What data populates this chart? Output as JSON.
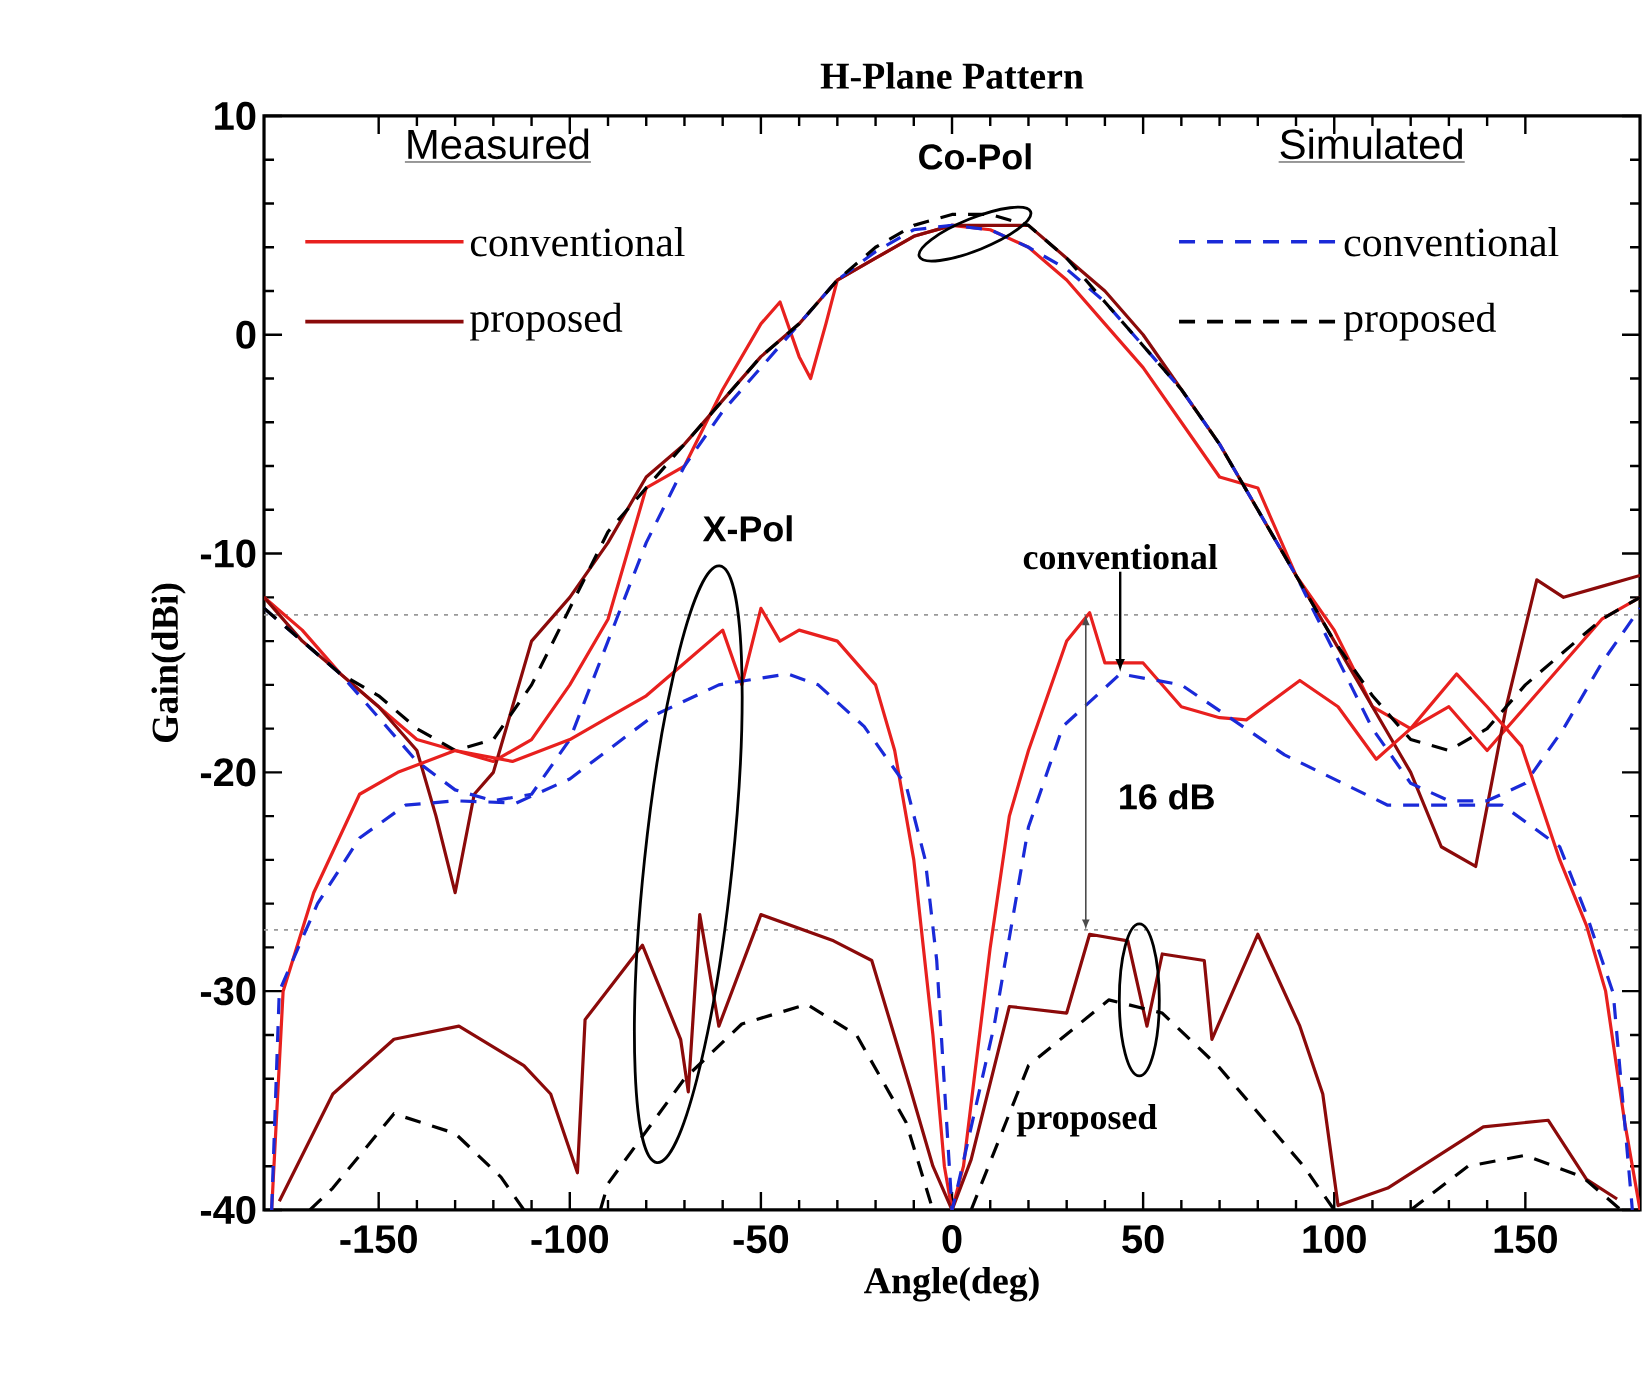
{
  "chart_data": {
    "type": "line",
    "title": "H-Plane Pattern",
    "xlabel": "Angle(deg)",
    "ylabel": "Gain(dBi)",
    "xlim": [
      -180,
      180
    ],
    "ylim": [
      -40,
      10
    ],
    "xticks": [
      -150,
      -100,
      -50,
      0,
      50,
      100,
      150
    ],
    "yticks": [
      -40,
      -30,
      -20,
      -10,
      0,
      10
    ],
    "grid": false,
    "legend": "top",
    "marker": "none",
    "series": [
      {
        "name": "conventional",
        "color": "#e8201e",
        "line_style": "solid",
        "x": [
          -180,
          -170,
          -160,
          -150,
          -140,
          -130,
          -120,
          -110,
          -100,
          -90,
          -80,
          -70,
          -60,
          -50,
          -45,
          -40,
          -37,
          -33,
          -30,
          -20,
          -10,
          0,
          10,
          20,
          30,
          40,
          50,
          60,
          70,
          80,
          90,
          100,
          110,
          120,
          130,
          140,
          150,
          160,
          170,
          180
        ],
        "values": [
          -12,
          -13.5,
          -15.5,
          -17,
          -18.5,
          -19,
          -19.5,
          -18.5,
          -16,
          -13,
          -7,
          -6,
          -2.5,
          0.5,
          1.5,
          -1,
          -2,
          0.5,
          2.5,
          3.5,
          4.5,
          5,
          4.8,
          4,
          2.5,
          0.5,
          -1.5,
          -4,
          -6.5,
          -7,
          -11,
          -13.5,
          -17,
          -18,
          -17,
          -19,
          -17,
          -15,
          -13,
          -12
        ]
      },
      {
        "name": "proposed",
        "color": "#8b0a0a",
        "line_style": "solid",
        "x": [
          -180,
          -170,
          -160,
          -150,
          -140,
          -135,
          -130,
          -125,
          -120,
          -110,
          -100,
          -90,
          -80,
          -70,
          -60,
          -50,
          -40,
          -30,
          -20,
          -10,
          0,
          10,
          20,
          30,
          40,
          50,
          60,
          70,
          80,
          90,
          100,
          110,
          120,
          128,
          137,
          145,
          153,
          160,
          170,
          180
        ],
        "values": [
          -12,
          -14,
          -15.5,
          -17,
          -19,
          -22,
          -25.5,
          -21,
          -20,
          -14,
          -12,
          -9.5,
          -6.5,
          -5,
          -3,
          -1,
          0.5,
          2.5,
          3.5,
          4.5,
          5,
          5,
          5,
          3.5,
          2,
          0,
          -2.5,
          -5,
          -8,
          -11,
          -14,
          -17,
          -20,
          -23.4,
          -24.3,
          -17,
          -11.2,
          -12,
          -11.5,
          -11
        ]
      },
      {
        "name": "conventional",
        "color": "#1a2ad8",
        "line_style": "dashed",
        "x": [
          -180,
          -170,
          -160,
          -150,
          -140,
          -130,
          -120,
          -110,
          -100,
          -90,
          -80,
          -70,
          -60,
          -50,
          -40,
          -30,
          -20,
          -10,
          0,
          10,
          20,
          30,
          40,
          50,
          60,
          70,
          80,
          90,
          100,
          110,
          120,
          130,
          140,
          150,
          160,
          170,
          180
        ],
        "values": [
          -12.5,
          -14,
          -15.5,
          -17.5,
          -19.5,
          -20.8,
          -21.3,
          -21,
          -18.5,
          -14,
          -9.5,
          -6,
          -3.5,
          -1.5,
          0.5,
          2.5,
          3.8,
          4.8,
          5,
          4.8,
          4,
          3,
          1.5,
          -0.5,
          -2.5,
          -5,
          -8,
          -11,
          -14.5,
          -18,
          -20.5,
          -21.3,
          -21.3,
          -20.5,
          -18,
          -15,
          -12.5
        ]
      },
      {
        "name": "proposed",
        "color": "#000000",
        "line_style": "dashed",
        "x": [
          -180,
          -170,
          -160,
          -150,
          -140,
          -130,
          -120,
          -110,
          -100,
          -90,
          -80,
          -70,
          -60,
          -50,
          -40,
          -30,
          -20,
          -10,
          0,
          10,
          20,
          30,
          40,
          50,
          60,
          70,
          80,
          90,
          100,
          110,
          120,
          130,
          140,
          150,
          160,
          170,
          180
        ],
        "values": [
          -12.5,
          -14,
          -15.5,
          -16.5,
          -18,
          -19,
          -18.5,
          -16,
          -12.5,
          -9,
          -7,
          -5,
          -3,
          -1,
          0.5,
          2.5,
          4,
          5,
          5.5,
          5.5,
          5,
          3.5,
          1.5,
          -0.5,
          -2.5,
          -5,
          -8,
          -11,
          -14,
          -16.5,
          -18.5,
          -19,
          -18,
          -16,
          -14.5,
          -13,
          -12
        ]
      },
      {
        "color": "#e8201e",
        "line_style": "solid",
        "x": [
          -178,
          -175,
          -167,
          -155,
          -145,
          -130,
          -115,
          -100,
          -90,
          -80,
          -70,
          -60,
          -55,
          -50,
          -45,
          -40,
          -30,
          -20,
          -15,
          -10,
          -5,
          -2,
          0,
          3,
          10,
          15,
          20,
          30,
          36,
          40,
          50,
          60,
          70,
          77,
          91,
          101,
          111,
          120,
          132,
          140,
          149,
          159,
          166,
          171,
          176,
          180
        ],
        "values": [
          -40,
          -30,
          -25.5,
          -21,
          -20,
          -19,
          -19.5,
          -18.5,
          -17.5,
          -16.5,
          -15,
          -13.5,
          -16,
          -12.5,
          -14,
          -13.5,
          -14,
          -16,
          -19,
          -24,
          -32,
          -38,
          -40,
          -38,
          -28,
          -22,
          -19,
          -14,
          -12.7,
          -15,
          -15,
          -17,
          -17.5,
          -17.6,
          -15.8,
          -17,
          -19.4,
          -18,
          -15.5,
          -17,
          -18.8,
          -24,
          -27,
          -30,
          -36,
          -40
        ]
      },
      {
        "color": "#8b0a0a",
        "line_style": "solid",
        "x": [
          -176,
          -162,
          -146,
          -129,
          -112,
          -105,
          -98,
          -96,
          -81,
          -71,
          -69,
          -66,
          -61,
          -50,
          -31,
          -21,
          -11,
          -5,
          0,
          5,
          15,
          30,
          36,
          46,
          51,
          55,
          66,
          68,
          80,
          91,
          97,
          101,
          114,
          139,
          156,
          166,
          174
        ],
        "values": [
          -39.6,
          -34.7,
          -32.2,
          -31.6,
          -33.4,
          -34.7,
          -38.3,
          -31.3,
          -27.9,
          -32.2,
          -34.6,
          -26.5,
          -31.6,
          -26.5,
          -27.7,
          -28.6,
          -34.4,
          -38,
          -40,
          -37.7,
          -30.7,
          -31,
          -27.4,
          -27.7,
          -31.6,
          -28.3,
          -28.6,
          -32.2,
          -27.4,
          -31.6,
          -34.7,
          -39.8,
          -39,
          -36.2,
          -35.9,
          -38.6,
          -39.5
        ]
      },
      {
        "color": "#1a2ad8",
        "line_style": "dashed",
        "x": [
          -178,
          -176,
          -166,
          -155,
          -143,
          -130,
          -114,
          -100,
          -78,
          -61,
          -43,
          -35,
          -23,
          -12,
          -7,
          -4,
          0,
          1,
          11,
          20,
          29,
          44,
          60,
          87,
          114,
          130,
          144,
          159,
          166,
          173,
          178
        ],
        "values": [
          -40,
          -30,
          -26,
          -23,
          -21.5,
          -21.3,
          -21.4,
          -20.3,
          -17.4,
          -16,
          -15.5,
          -16,
          -17.9,
          -20.6,
          -24,
          -28.6,
          -40,
          -39.3,
          -31.6,
          -22.5,
          -17.9,
          -15.5,
          -16,
          -19.2,
          -21.5,
          -21.5,
          -21.5,
          -23.4,
          -26.5,
          -30.1,
          -40
        ]
      },
      {
        "color": "#000000",
        "line_style": "dashed",
        "x": [
          -168,
          -162,
          -146,
          -130,
          -118,
          -112,
          -100,
          -92,
          -90,
          -70,
          -55,
          -38,
          -25,
          -12,
          -5,
          0,
          5,
          20,
          41,
          55,
          70,
          92,
          100,
          110,
          120,
          135,
          150,
          165,
          175
        ],
        "values": [
          -40,
          -39,
          -35.6,
          -36.5,
          -38.5,
          -40,
          null,
          -40,
          -38.8,
          -34,
          -31.5,
          -30.6,
          -32,
          -36,
          -40,
          null,
          -40,
          -33.4,
          -30.4,
          -31,
          -33.5,
          -38,
          -40,
          null,
          -40,
          -38,
          -37.5,
          -38.5,
          -40
        ]
      }
    ],
    "ref_lines": [
      {
        "axis": "y",
        "value": -12.8,
        "color": "#999999",
        "line_style": "dotted"
      },
      {
        "axis": "y",
        "value": -27.2,
        "color": "#999999",
        "line_style": "dotted"
      }
    ],
    "annotations": [
      "Measured",
      "Simulated",
      "Co-Pol",
      "X-Pol",
      {
        "text": "conventional",
        "x": 44,
        "y": -15.4
      },
      "16 dB",
      "proposed"
    ]
  }
}
